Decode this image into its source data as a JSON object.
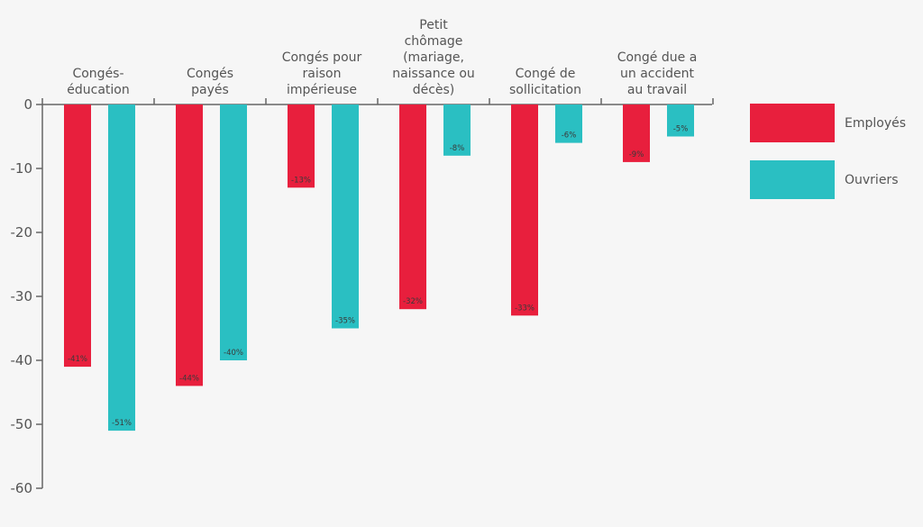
{
  "chart_data": {
    "type": "bar",
    "categories": [
      [
        "Congés-",
        "éducation"
      ],
      [
        "Congés",
        "payés"
      ],
      [
        "Congés pour",
        "raison",
        "impérieuse"
      ],
      [
        "Petit",
        "chômage",
        "(mariage,",
        "naissance ou",
        "décès)"
      ],
      [
        "Congé de",
        "sollicitation"
      ],
      [
        "Congé due a",
        "un accident",
        "au travail"
      ]
    ],
    "series": [
      {
        "name": "Employés",
        "color": "#e81f3d",
        "values": [
          -41,
          -44,
          -13,
          -32,
          -33,
          -9
        ],
        "labels": [
          "-41%",
          "-44%",
          "-13%",
          "-32%",
          "-33%",
          "-9%"
        ]
      },
      {
        "name": "Ouvriers",
        "color": "#2abfc2",
        "values": [
          -51,
          -40,
          -35,
          -8,
          -6,
          -5
        ],
        "labels": [
          "-51%",
          "-40%",
          "-35%",
          "-8%",
          "-6%",
          "-5%"
        ]
      }
    ],
    "ylim": [
      -60,
      0
    ],
    "yticks": [
      0,
      -10,
      -20,
      -30,
      -40,
      -50,
      -60
    ],
    "xaxis_position": "top",
    "legend_position": "right",
    "grid": false,
    "axis_color": "#666666"
  }
}
